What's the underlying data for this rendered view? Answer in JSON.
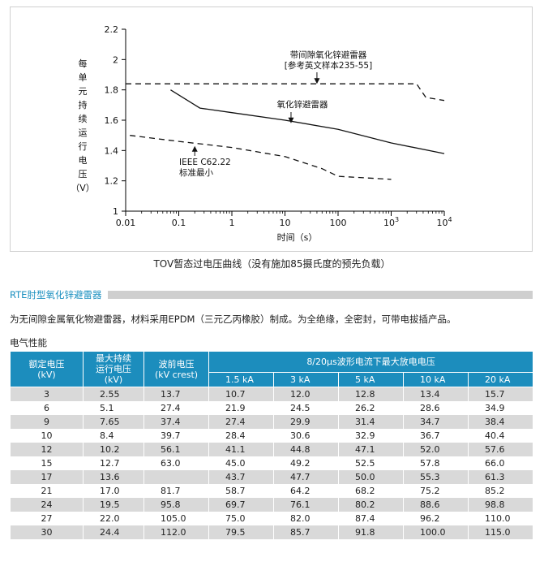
{
  "chart_data": {
    "type": "line",
    "xlabel": "时间（s）",
    "ylabel": "每单元持续运行电压（V）",
    "ylabel_chars": [
      "每",
      "单",
      "元",
      "持",
      "续",
      "运",
      "行",
      "电",
      "压",
      "（V）"
    ],
    "xscale": "log",
    "xlim": [
      0.01,
      10000
    ],
    "ylim": [
      1,
      2.2
    ],
    "x_ticks": [
      0.01,
      0.1,
      1,
      10,
      100,
      1000,
      10000
    ],
    "x_tick_labels": [
      "0.01",
      "0.1",
      "1",
      "10",
      "100",
      "10^3",
      "10^4"
    ],
    "y_ticks": [
      1,
      1.2,
      1.4,
      1.6,
      1.8,
      2,
      2.2
    ],
    "y_tick_labels": [
      "1",
      "1.2",
      "1.4",
      "1.6",
      "1.8",
      "2",
      "2.2"
    ],
    "grid": false,
    "series": [
      {
        "name": "带间隙氧化锌避雷器",
        "style": "dashed",
        "points": [
          [
            0.01,
            1.84
          ],
          [
            3000,
            1.84
          ],
          [
            4500,
            1.75
          ],
          [
            10000,
            1.73
          ]
        ]
      },
      {
        "name": "氧化锌避雷器",
        "style": "solid",
        "points": [
          [
            0.07,
            1.8
          ],
          [
            0.25,
            1.68
          ],
          [
            1,
            1.65
          ],
          [
            10,
            1.6
          ],
          [
            100,
            1.54
          ],
          [
            1000,
            1.45
          ],
          [
            10000,
            1.38
          ]
        ]
      },
      {
        "name": "IEEE C62.22 标准最小",
        "style": "dashed",
        "points": [
          [
            0.012,
            1.5
          ],
          [
            0.1,
            1.46
          ],
          [
            1,
            1.42
          ],
          [
            10,
            1.36
          ],
          [
            50,
            1.28
          ],
          [
            100,
            1.23
          ],
          [
            1000,
            1.21
          ]
        ]
      }
    ],
    "annotations": [
      {
        "lines": [
          "带间隙氧化锌避雷器",
          "[参考英文样本235-55]"
        ],
        "arrow_to": [
          40,
          1.84
        ]
      },
      {
        "lines": [
          "氧化锌避雷器"
        ],
        "arrow_to": [
          13,
          1.58
        ]
      },
      {
        "lines": [
          "IEEE C62.22",
          "标准最小"
        ],
        "arrow_to": [
          0.2,
          1.43
        ]
      }
    ]
  },
  "caption": "TOV暂态过电压曲线（没有施加85摄氏度的预先负载）",
  "section_title": "RTE肘型氧化锌避雷器",
  "description": "为无间隙金属氧化物避雷器，材料采用EPDM（三元乙丙橡胶）制成。为全绝缘，全密封，可带电拔插产品。",
  "subheading": "电气性能",
  "table": {
    "headers": {
      "rated_voltage": "额定电压\n(kV)",
      "mcov": "最大持续\n运行电压\n(kV)",
      "front_voltage": "波前电压\n(kV crest)",
      "discharge_group": "8/20μs波形电流下最大放电电压",
      "currents": [
        "1.5 kA",
        "3 kA",
        "5 kA",
        "10 kA",
        "20 kA"
      ]
    },
    "rows": [
      [
        "3",
        "2.55",
        "13.7",
        "10.7",
        "12.0",
        "12.8",
        "13.4",
        "15.7"
      ],
      [
        "6",
        "5.1",
        "27.4",
        "21.9",
        "24.5",
        "26.2",
        "28.6",
        "34.9"
      ],
      [
        "9",
        "7.65",
        "37.4",
        "27.4",
        "29.9",
        "31.4",
        "34.7",
        "38.4"
      ],
      [
        "10",
        "8.4",
        "39.7",
        "28.4",
        "30.6",
        "32.9",
        "36.7",
        "40.4"
      ],
      [
        "12",
        "10.2",
        "56.1",
        "41.1",
        "44.8",
        "47.1",
        "52.0",
        "57.6"
      ],
      [
        "15",
        "12.7",
        "63.0",
        "45.0",
        "49.2",
        "52.5",
        "57.8",
        "66.0"
      ],
      [
        "17",
        "13.6",
        "",
        "43.7",
        "47.7",
        "50.0",
        "55.3",
        "61.3"
      ],
      [
        "21",
        "17.0",
        "81.7",
        "58.7",
        "64.2",
        "68.2",
        "75.2",
        "85.2"
      ],
      [
        "24",
        "19.5",
        "95.8",
        "69.7",
        "76.1",
        "80.2",
        "88.6",
        "98.8"
      ],
      [
        "27",
        "22.0",
        "105.0",
        "75.0",
        "82.0",
        "87.4",
        "96.2",
        "110.0"
      ],
      [
        "30",
        "24.4",
        "112.0",
        "79.5",
        "85.7",
        "91.8",
        "100.0",
        "115.0"
      ]
    ]
  }
}
